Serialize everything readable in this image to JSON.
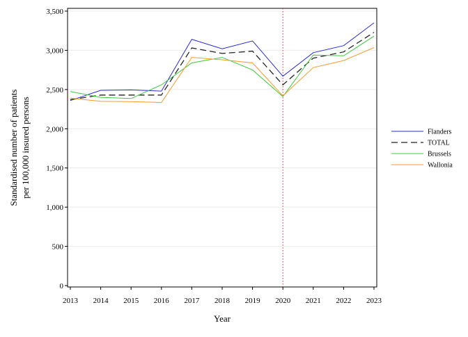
{
  "chart_data": {
    "type": "line",
    "xlabel": "Year",
    "ylabel_lines": [
      "Standardised number of patients",
      "per 100,000 insured persons"
    ],
    "x": [
      2013,
      2014,
      2015,
      2016,
      2017,
      2018,
      2019,
      2020,
      2021,
      2022,
      2023
    ],
    "ylim": [
      0,
      3500
    ],
    "yticks": [
      0,
      500,
      1000,
      1500,
      2000,
      2500,
      3000,
      3500
    ],
    "ytick_labels": [
      "0",
      "500",
      "1,000",
      "1,500",
      "2,000",
      "2,500",
      "3,000",
      "3,500"
    ],
    "grid": true,
    "legend_position": "right",
    "reference_line": {
      "x": 2020,
      "color": "#cc3333",
      "style": "dotted"
    },
    "series": [
      {
        "name": "Flanders",
        "color": "#2a2ad6",
        "dash": "",
        "values": [
          2360,
          2490,
          2495,
          2480,
          3140,
          3020,
          3120,
          2670,
          2970,
          3060,
          3350
        ]
      },
      {
        "name": "TOTAL",
        "color": "#222222",
        "dash": "9,5",
        "values": [
          2370,
          2430,
          2430,
          2430,
          3030,
          2960,
          2990,
          2560,
          2900,
          2980,
          3230
        ]
      },
      {
        "name": "Brussels",
        "color": "#3cc83c",
        "dash": "",
        "values": [
          2475,
          2400,
          2385,
          2560,
          2840,
          2910,
          2750,
          2410,
          2940,
          2930,
          3180
        ]
      },
      {
        "name": "Wallonia",
        "color": "#f59a2a",
        "dash": "",
        "values": [
          2390,
          2350,
          2345,
          2335,
          2910,
          2880,
          2840,
          2420,
          2780,
          2870,
          3035
        ]
      }
    ]
  }
}
